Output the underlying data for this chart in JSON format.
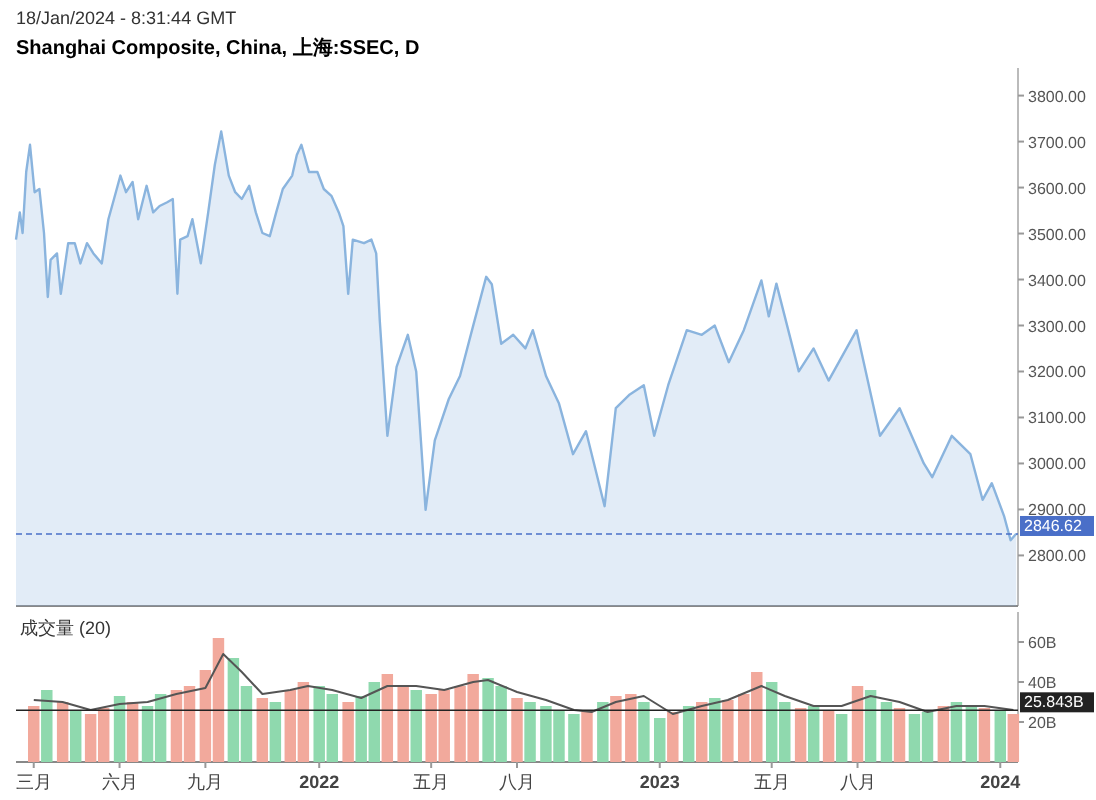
{
  "chart_data": [
    {
      "type": "area",
      "title": "Shanghai Composite, China, 上海:SSEC, D",
      "annotations": [
        "18/Jan/2024 - 8:31:44 GMT"
      ],
      "color": "#8ab4de",
      "tick_labels": "y",
      "xlim": [
        "2021-02-10",
        "2024-01-20"
      ],
      "ylim": [
        2690,
        3860
      ],
      "yticks": [
        {
          "value": 2800,
          "label": "2800.00"
        },
        {
          "value": 2900,
          "label": "2900.00"
        },
        {
          "value": 3000,
          "label": "3000.00"
        },
        {
          "value": 3100,
          "label": "3100.00"
        },
        {
          "value": 3200,
          "label": "3200.00"
        },
        {
          "value": 3300,
          "label": "3300.00"
        },
        {
          "value": 3400,
          "label": "3400.00"
        },
        {
          "value": 3500,
          "label": "3500.00"
        },
        {
          "value": 3600,
          "label": "3600.00"
        },
        {
          "value": 3700,
          "label": "3700.00"
        },
        {
          "value": 3800,
          "label": "3800.00"
        }
      ],
      "ref_lines": [
        {
          "axis": "y",
          "value": 2846.62,
          "label": "2846.62",
          "color": "#4a6fc8",
          "line_style": "dashed"
        }
      ],
      "x": [
        "2021-02-10",
        "2021-02-14",
        "2021-02-17",
        "2021-02-21",
        "2021-02-25",
        "2021-03-02",
        "2021-03-07",
        "2021-03-12",
        "2021-03-16",
        "2021-03-19",
        "2021-03-26",
        "2021-03-30",
        "2021-04-07",
        "2021-04-14",
        "2021-04-20",
        "2021-04-27",
        "2021-05-04",
        "2021-05-13",
        "2021-05-20",
        "2021-05-26",
        "2021-06-02",
        "2021-06-08",
        "2021-06-15",
        "2021-06-21",
        "2021-06-30",
        "2021-07-07",
        "2021-07-14",
        "2021-07-22",
        "2021-07-28",
        "2021-08-02",
        "2021-08-05",
        "2021-08-13",
        "2021-08-18",
        "2021-08-27",
        "2021-09-04",
        "2021-09-11",
        "2021-09-18",
        "2021-09-26",
        "2021-10-03",
        "2021-10-10",
        "2021-10-18",
        "2021-10-25",
        "2021-11-01",
        "2021-11-09",
        "2021-11-16",
        "2021-11-23",
        "2021-12-03",
        "2021-12-08",
        "2021-12-13",
        "2021-12-21",
        "2021-12-30",
        "2022-01-06",
        "2022-01-14",
        "2022-01-22",
        "2022-01-27",
        "2022-02-01",
        "2022-02-06",
        "2022-02-18",
        "2022-02-26",
        "2022-03-03",
        "2022-03-07",
        "2022-03-15",
        "2022-03-25",
        "2022-04-06",
        "2022-04-15",
        "2022-04-25",
        "2022-05-05",
        "2022-05-20",
        "2022-06-01",
        "2022-06-15",
        "2022-06-29",
        "2022-07-05",
        "2022-07-15",
        "2022-07-28",
        "2022-08-10",
        "2022-08-18",
        "2022-09-01",
        "2022-09-15",
        "2022-09-30",
        "2022-10-14",
        "2022-11-03",
        "2022-11-15",
        "2022-11-30",
        "2022-12-15",
        "2022-12-26",
        "2023-01-10",
        "2023-01-30",
        "2023-02-15",
        "2023-03-01",
        "2023-03-16",
        "2023-04-01",
        "2023-04-20",
        "2023-04-28",
        "2023-05-06",
        "2023-05-30",
        "2023-06-15",
        "2023-07-01",
        "2023-07-31",
        "2023-08-25",
        "2023-09-15",
        "2023-10-11",
        "2023-10-20",
        "2023-11-10",
        "2023-11-30",
        "2023-12-13",
        "2023-12-23",
        "2024-01-05",
        "2024-01-12",
        "2024-01-18"
      ],
      "values": [
        3487,
        3546,
        3501,
        3634,
        3693,
        3590,
        3597,
        3501,
        3362,
        3443,
        3457,
        3369,
        3479,
        3479,
        3435,
        3479,
        3457,
        3435,
        3531,
        3575,
        3626,
        3590,
        3612,
        3531,
        3604,
        3546,
        3560,
        3568,
        3575,
        3369,
        3487,
        3494,
        3531,
        3435,
        3546,
        3649,
        3722,
        3626,
        3590,
        3575,
        3604,
        3546,
        3501,
        3494,
        3546,
        3597,
        3626,
        3671,
        3693,
        3634,
        3634,
        3597,
        3582,
        3546,
        3516,
        3369,
        3487,
        3479,
        3487,
        3457,
        3310,
        3060,
        3210,
        3280,
        3200,
        2899,
        3050,
        3140,
        3190,
        3300,
        3406,
        3390,
        3260,
        3280,
        3250,
        3290,
        3190,
        3130,
        3020,
        3070,
        2907,
        3120,
        3150,
        3170,
        3060,
        3170,
        3290,
        3280,
        3300,
        3220,
        3290,
        3398,
        3320,
        3391,
        3200,
        3250,
        3180,
        3290,
        3060,
        3120,
        3000,
        2970,
        3060,
        3020,
        2921,
        2957,
        2886,
        2833,
        2847
      ]
    },
    {
      "type": "bar",
      "title": "成交量 (20)",
      "xlim": [
        "2021-02-10",
        "2024-01-20"
      ],
      "ylim": [
        0,
        75
      ],
      "yticks": [
        {
          "value": 20,
          "label": "20B"
        },
        {
          "value": 40,
          "label": "40B"
        },
        {
          "value": 60,
          "label": "60B"
        }
      ],
      "xticks": [
        {
          "value": "2021-03-01",
          "label": "三月"
        },
        {
          "value": "2021-06-01",
          "label": "六月"
        },
        {
          "value": "2021-09-01",
          "label": "九月"
        },
        {
          "value": "2022-01-01",
          "label": "2022"
        },
        {
          "value": "2022-05-01",
          "label": "五月"
        },
        {
          "value": "2022-08-01",
          "label": "八月"
        },
        {
          "value": "2023-01-01",
          "label": "2023"
        },
        {
          "value": "2023-05-01",
          "label": "五月"
        },
        {
          "value": "2023-08-01",
          "label": "八月"
        },
        {
          "value": "2024-01-01",
          "label": "2024"
        }
      ],
      "ref_lines": [
        {
          "axis": "y",
          "value": 25.843,
          "label": "25.843B",
          "color": "#222222"
        }
      ],
      "series": [
        {
          "type": "bar",
          "x": [
            "2021-03-01",
            "2021-03-15",
            "2021-04-01",
            "2021-04-15",
            "2021-05-01",
            "2021-05-15",
            "2021-06-01",
            "2021-06-15",
            "2021-07-01",
            "2021-07-15",
            "2021-08-01",
            "2021-08-15",
            "2021-09-01",
            "2021-09-15",
            "2021-10-01",
            "2021-10-15",
            "2021-11-01",
            "2021-11-15",
            "2021-12-01",
            "2021-12-15",
            "2022-01-01",
            "2022-01-15",
            "2022-02-01",
            "2022-02-15",
            "2022-03-01",
            "2022-03-15",
            "2022-04-01",
            "2022-04-15",
            "2022-05-01",
            "2022-05-15",
            "2022-06-01",
            "2022-06-15",
            "2022-07-01",
            "2022-07-15",
            "2022-08-01",
            "2022-08-15",
            "2022-09-01",
            "2022-09-15",
            "2022-10-01",
            "2022-10-15",
            "2022-11-01",
            "2022-11-15",
            "2022-12-01",
            "2022-12-15",
            "2023-01-01",
            "2023-01-15",
            "2023-02-01",
            "2023-02-15",
            "2023-03-01",
            "2023-03-15",
            "2023-04-01",
            "2023-04-15",
            "2023-05-01",
            "2023-05-15",
            "2023-06-01",
            "2023-06-15",
            "2023-07-01",
            "2023-07-15",
            "2023-08-01",
            "2023-08-15",
            "2023-09-01",
            "2023-09-15",
            "2023-10-01",
            "2023-10-15",
            "2023-11-01",
            "2023-11-15",
            "2023-12-01",
            "2023-12-15",
            "2024-01-01",
            "2024-01-15"
          ],
          "values": [
            28,
            36,
            30,
            26,
            24,
            27,
            33,
            30,
            28,
            34,
            36,
            38,
            46,
            62,
            52,
            38,
            32,
            30,
            36,
            40,
            38,
            34,
            30,
            33,
            40,
            44,
            38,
            36,
            34,
            36,
            38,
            44,
            42,
            38,
            32,
            30,
            28,
            26,
            24,
            26,
            30,
            33,
            34,
            30,
            22,
            25,
            28,
            30,
            32,
            31,
            34,
            45,
            40,
            30,
            27,
            28,
            26,
            24,
            38,
            36,
            30,
            27,
            24,
            25,
            28,
            30,
            28,
            27,
            26,
            24
          ],
          "colors": [
            "#f2a99c",
            "#8fd9ae",
            "#f2a99c",
            "#8fd9ae",
            "#f2a99c",
            "#f2a99c",
            "#8fd9ae",
            "#f2a99c",
            "#8fd9ae",
            "#8fd9ae",
            "#f2a99c",
            "#f2a99c",
            "#f2a99c",
            "#f2a99c",
            "#8fd9ae",
            "#8fd9ae",
            "#f2a99c",
            "#8fd9ae",
            "#f2a99c",
            "#f2a99c",
            "#8fd9ae",
            "#8fd9ae",
            "#f2a99c",
            "#8fd9ae",
            "#8fd9ae",
            "#f2a99c",
            "#f2a99c",
            "#8fd9ae",
            "#f2a99c",
            "#f2a99c",
            "#f2a99c",
            "#f2a99c",
            "#8fd9ae",
            "#8fd9ae",
            "#f2a99c",
            "#8fd9ae",
            "#8fd9ae",
            "#8fd9ae",
            "#8fd9ae",
            "#f2a99c",
            "#8fd9ae",
            "#f2a99c",
            "#f2a99c",
            "#8fd9ae",
            "#8fd9ae",
            "#f2a99c",
            "#8fd9ae",
            "#f2a99c",
            "#8fd9ae",
            "#f2a99c",
            "#f2a99c",
            "#f2a99c",
            "#8fd9ae",
            "#8fd9ae",
            "#f2a99c",
            "#8fd9ae",
            "#f2a99c",
            "#8fd9ae",
            "#f2a99c",
            "#8fd9ae",
            "#8fd9ae",
            "#f2a99c",
            "#8fd9ae",
            "#8fd9ae",
            "#f2a99c",
            "#8fd9ae",
            "#8fd9ae",
            "#f2a99c",
            "#8fd9ae",
            "#f2a99c"
          ]
        },
        {
          "type": "line",
          "color": "#555555",
          "x": [
            "2021-03-01",
            "2021-04-01",
            "2021-05-01",
            "2021-06-01",
            "2021-07-01",
            "2021-08-01",
            "2021-09-01",
            "2021-09-20",
            "2021-10-10",
            "2021-11-01",
            "2021-12-01",
            "2021-12-20",
            "2022-01-15",
            "2022-02-15",
            "2022-03-15",
            "2022-04-15",
            "2022-05-15",
            "2022-06-15",
            "2022-07-01",
            "2022-08-01",
            "2022-09-01",
            "2022-10-01",
            "2022-10-20",
            "2022-11-15",
            "2022-12-15",
            "2023-01-15",
            "2023-02-15",
            "2023-03-15",
            "2023-04-20",
            "2023-05-15",
            "2023-06-15",
            "2023-07-15",
            "2023-08-15",
            "2023-09-15",
            "2023-10-15",
            "2023-11-15",
            "2023-12-15",
            "2024-01-15"
          ],
          "values": [
            31,
            30,
            26,
            29,
            30,
            34,
            37,
            54,
            45,
            34,
            36,
            38,
            36,
            32,
            38,
            38,
            36,
            40,
            41,
            35,
            31,
            26,
            25,
            30,
            33,
            24,
            28,
            31,
            38,
            33,
            28,
            28,
            33,
            30,
            25,
            28,
            28,
            26
          ]
        }
      ]
    }
  ]
}
